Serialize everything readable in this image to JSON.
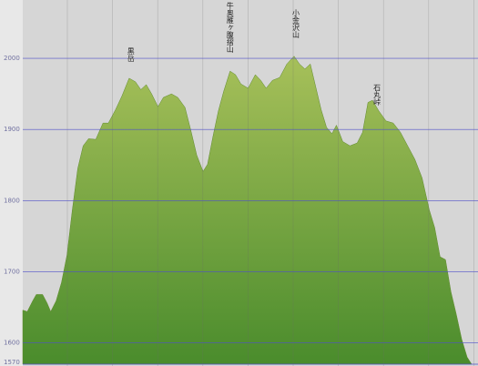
{
  "chart_data": {
    "type": "area",
    "color": "#7fa83e",
    "x": [
      0,
      5,
      11,
      15,
      22,
      27,
      31,
      37,
      43,
      49,
      55,
      61,
      67,
      73,
      81,
      89,
      95,
      103,
      110,
      118,
      125,
      131,
      137,
      143,
      150,
      156,
      165,
      172,
      180,
      187,
      193,
      200,
      205,
      211,
      217,
      223,
      230,
      236,
      242,
      250,
      258,
      264,
      270,
      277,
      285,
      293,
      301,
      307,
      313,
      319,
      325,
      331,
      337,
      343,
      348,
      355,
      363,
      371,
      377,
      383,
      388,
      395,
      403,
      411,
      419,
      427,
      435,
      443,
      451,
      457,
      463,
      469,
      475,
      481,
      487,
      493,
      498
    ],
    "values": [
      1646,
      1644,
      1659,
      1668,
      1668,
      1656,
      1644,
      1659,
      1685,
      1723,
      1787,
      1845,
      1877,
      1887,
      1886,
      1909,
      1909,
      1928,
      1947,
      1972,
      1967,
      1956,
      1963,
      1950,
      1932,
      1945,
      1950,
      1945,
      1931,
      1896,
      1864,
      1841,
      1851,
      1890,
      1926,
      1954,
      1982,
      1977,
      1964,
      1958,
      1977,
      1969,
      1958,
      1969,
      1973,
      1992,
      2003,
      1992,
      1985,
      1992,
      1960,
      1928,
      1903,
      1894,
      1906,
      1883,
      1877,
      1881,
      1896,
      1938,
      1941,
      1926,
      1912,
      1909,
      1896,
      1877,
      1858,
      1832,
      1787,
      1762,
      1721,
      1717,
      1672,
      1640,
      1605,
      1580,
      1570
    ],
    "xlim": [
      0,
      500
    ],
    "ylim": [
      1570,
      2082
    ],
    "yticks": [
      1570,
      1600,
      1700,
      1800,
      1900,
      2000
    ],
    "grid": true,
    "annotations": [
      {
        "text": "黒岳",
        "x": 120
      },
      {
        "text": "牛奥雁ヶ腹摺山",
        "x": 230
      },
      {
        "text": "小金沢山",
        "x": 303
      },
      {
        "text": "石丸峠",
        "x": 393
      }
    ]
  }
}
